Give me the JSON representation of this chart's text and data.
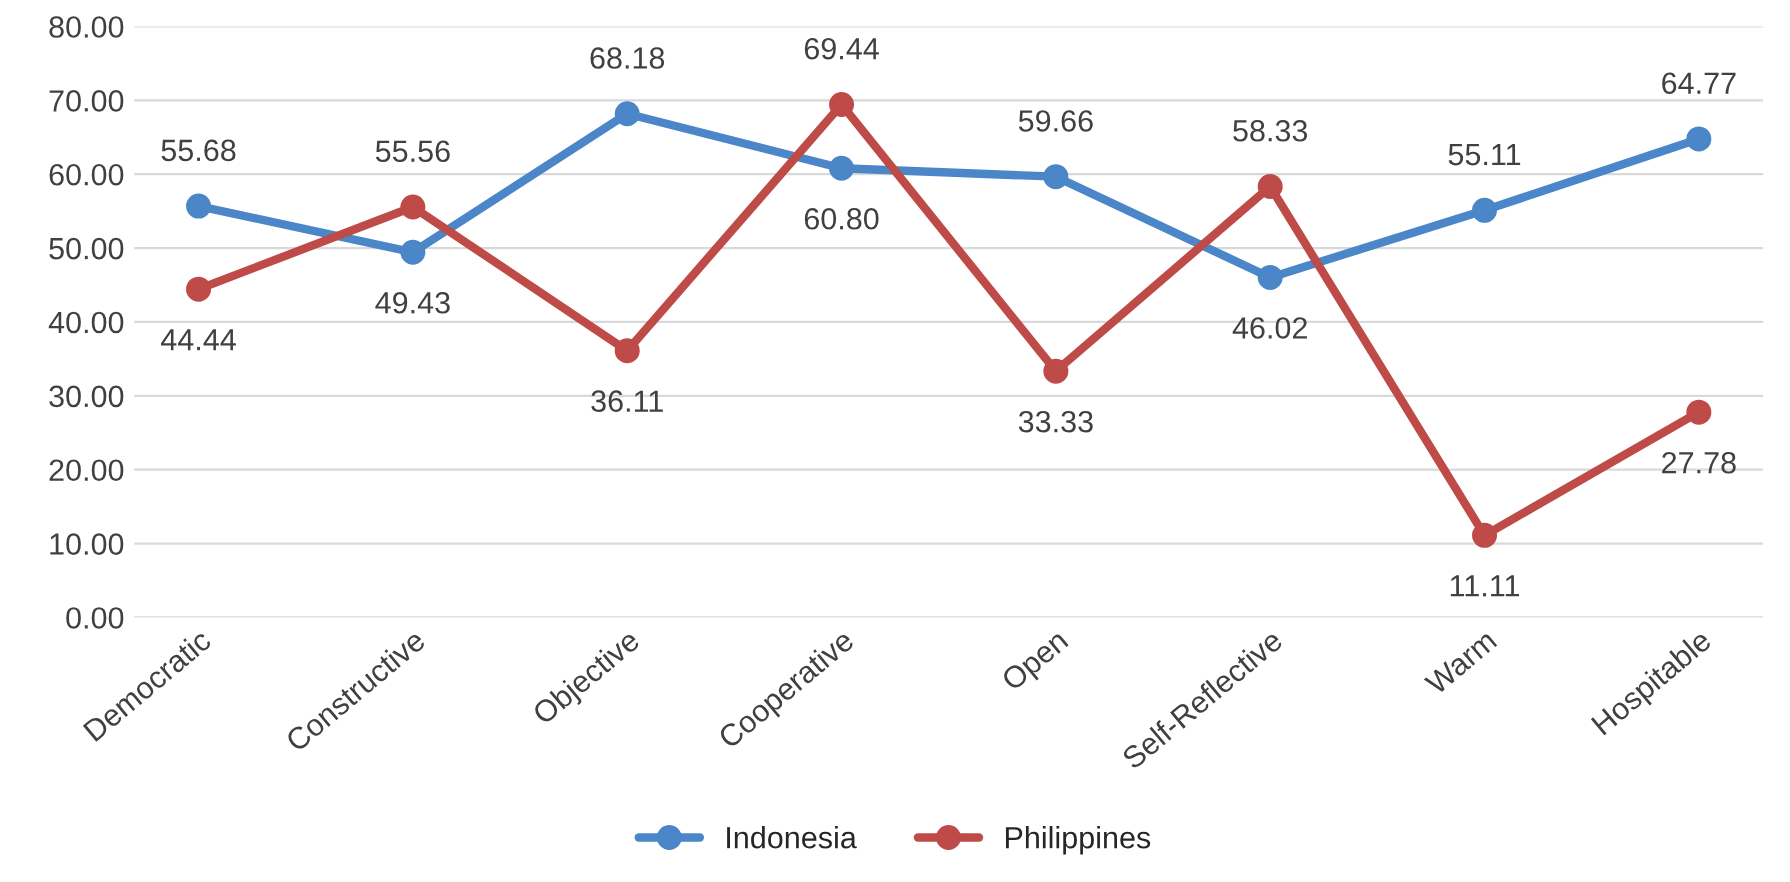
{
  "chart_data": {
    "type": "line",
    "categories": [
      "Democratic",
      "Constructive",
      "Objective",
      "Cooperative",
      "Open",
      "Self-Reflective",
      "Warm",
      "Hospitable"
    ],
    "series": [
      {
        "name": "Indonesia",
        "color": "#4a86c8",
        "values": [
          55.68,
          49.43,
          68.18,
          60.8,
          59.66,
          46.02,
          55.11,
          64.77
        ],
        "value_labels": [
          "55.68",
          "49.43",
          "68.18",
          "60.80",
          "59.66",
          "46.02",
          "55.11",
          "64.77"
        ]
      },
      {
        "name": "Philippines",
        "color": "#be4b48",
        "values": [
          44.44,
          55.56,
          36.11,
          69.44,
          33.33,
          58.33,
          11.11,
          27.78
        ],
        "value_labels": [
          "44.44",
          "55.56",
          "36.11",
          "69.44",
          "33.33",
          "58.33",
          "11.11",
          "27.78"
        ]
      }
    ],
    "ylim": [
      0,
      80
    ],
    "yticks": [
      {
        "value": 0,
        "label": "0.00"
      },
      {
        "value": 10,
        "label": "10.00"
      },
      {
        "value": 20,
        "label": "20.00"
      },
      {
        "value": 30,
        "label": "30.00"
      },
      {
        "value": 40,
        "label": "40.00"
      },
      {
        "value": 50,
        "label": "50.00"
      },
      {
        "value": 60,
        "label": "60.00"
      },
      {
        "value": 70,
        "label": "70.00"
      },
      {
        "value": 80,
        "label": "80.00"
      }
    ],
    "grid": "y",
    "legend": "bottom",
    "marker": "circle",
    "line_style": "solid"
  }
}
